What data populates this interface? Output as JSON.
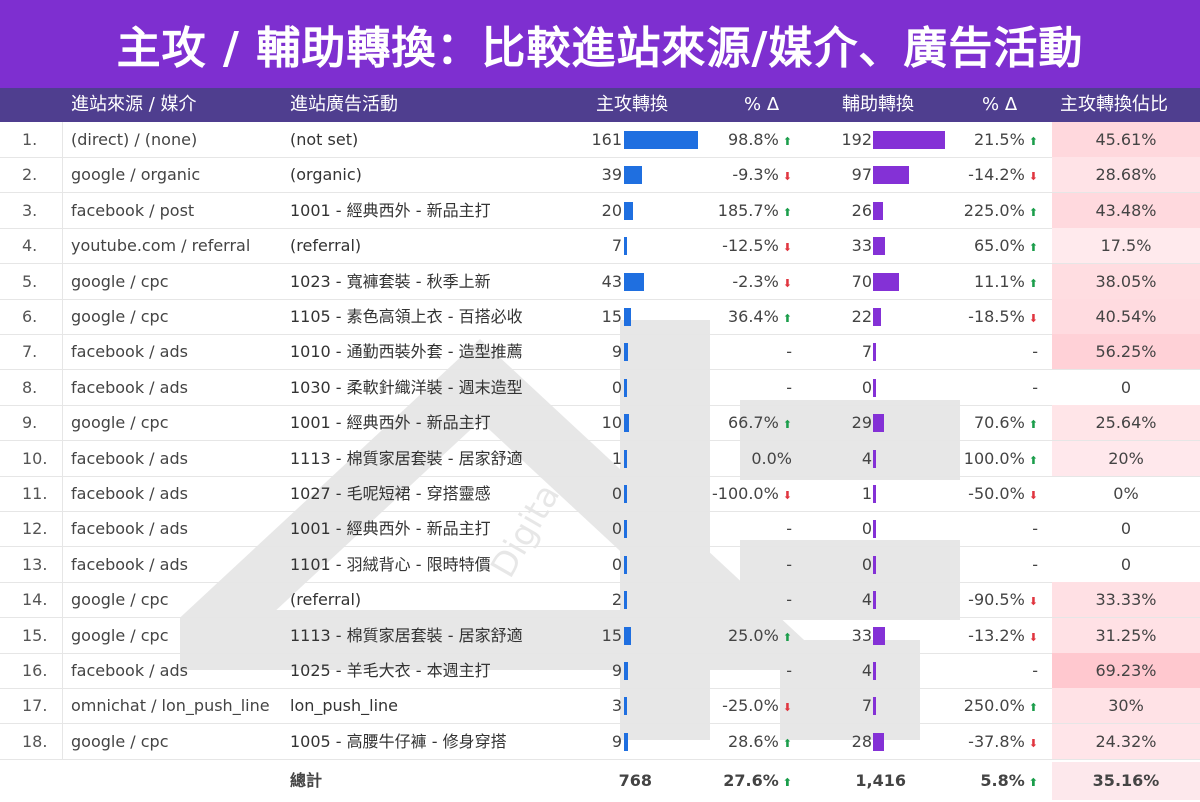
{
  "title": "主攻 / 輔助轉換：比較進站來源/媒介、廣告活動",
  "colors": {
    "title_bg": "#7e2fd0",
    "header_bg": "#4f3e8f",
    "primary_bar": "#1f6fe0",
    "assist_bar": "#8431d6",
    "up": "#1a9d4a",
    "down": "#e0353f",
    "ratio_heat": "#f8c8d2"
  },
  "columns": {
    "source": "進站來源 / 媒介",
    "campaign": "進站廣告活動",
    "primary": "主攻轉換",
    "primary_change": "% Δ",
    "assist": "輔助轉換",
    "assist_change": "% Δ",
    "ratio": "主攻轉換佔比"
  },
  "rows": [
    {
      "idx": "1.",
      "source": "(direct) / (none)",
      "campaign": "(not set)",
      "primary": 161,
      "primary_change": "98.8%",
      "primary_dir": "up",
      "assist": 192,
      "assist_change": "21.5%",
      "assist_dir": "up",
      "ratio": "45.61%",
      "ratio_value": 0.4561
    },
    {
      "idx": "2.",
      "source": "google / organic",
      "campaign": "(organic)",
      "primary": 39,
      "primary_change": "-9.3%",
      "primary_dir": "down",
      "assist": 97,
      "assist_change": "-14.2%",
      "assist_dir": "down",
      "ratio": "28.68%",
      "ratio_value": 0.2868
    },
    {
      "idx": "3.",
      "source": "facebook / post",
      "campaign": "1001 - 經典西外 - 新品主打",
      "primary": 20,
      "primary_change": "185.7%",
      "primary_dir": "up",
      "assist": 26,
      "assist_change": "225.0%",
      "assist_dir": "up",
      "ratio": "43.48%",
      "ratio_value": 0.4348
    },
    {
      "idx": "4.",
      "source": "youtube.com / referral",
      "campaign": "(referral)",
      "primary": 7,
      "primary_change": "-12.5%",
      "primary_dir": "down",
      "assist": 33,
      "assist_change": "65.0%",
      "assist_dir": "up",
      "ratio": "17.5%",
      "ratio_value": 0.175
    },
    {
      "idx": "5.",
      "source": "google / cpc",
      "campaign": "1023 - 寬褲套裝 - 秋季上新",
      "primary": 43,
      "primary_change": "-2.3%",
      "primary_dir": "down",
      "assist": 70,
      "assist_change": "11.1%",
      "assist_dir": "up",
      "ratio": "38.05%",
      "ratio_value": 0.3805
    },
    {
      "idx": "6.",
      "source": "google / cpc",
      "campaign": "1105 - 素色高領上衣 - 百搭必收",
      "primary": 15,
      "primary_change": "36.4%",
      "primary_dir": "up",
      "assist": 22,
      "assist_change": "-18.5%",
      "assist_dir": "down",
      "ratio": "40.54%",
      "ratio_value": 0.4054
    },
    {
      "idx": "7.",
      "source": "facebook / ads",
      "campaign": "1010 - 通勤西裝外套 - 造型推薦",
      "primary": 9,
      "primary_change": "-",
      "primary_dir": "",
      "assist": 7,
      "assist_change": "-",
      "assist_dir": "",
      "ratio": "56.25%",
      "ratio_value": 0.5625
    },
    {
      "idx": "8.",
      "source": "facebook / ads",
      "campaign": "1030 - 柔軟針織洋裝 - 週末造型",
      "primary": 0,
      "primary_change": "-",
      "primary_dir": "",
      "assist": 0,
      "assist_change": "-",
      "assist_dir": "",
      "ratio": "0",
      "ratio_value": 0
    },
    {
      "idx": "9.",
      "source": "google / cpc",
      "campaign": "1001 - 經典西外 - 新品主打",
      "primary": 10,
      "primary_change": "66.7%",
      "primary_dir": "up",
      "assist": 29,
      "assist_change": "70.6%",
      "assist_dir": "up",
      "ratio": "25.64%",
      "ratio_value": 0.2564
    },
    {
      "idx": "10.",
      "source": "facebook / ads",
      "campaign": "1113 - 棉質家居套裝 - 居家舒適",
      "primary": 1,
      "primary_change": "0.0%",
      "primary_dir": "",
      "assist": 4,
      "assist_change": "100.0%",
      "assist_dir": "up",
      "ratio": "20%",
      "ratio_value": 0.2
    },
    {
      "idx": "11.",
      "source": "facebook / ads",
      "campaign": "1027 - 毛呢短裙 - 穿搭靈感",
      "primary": 0,
      "primary_change": "-100.0%",
      "primary_dir": "down",
      "assist": 1,
      "assist_change": "-50.0%",
      "assist_dir": "down",
      "ratio": "0%",
      "ratio_value": 0
    },
    {
      "idx": "12.",
      "source": "facebook / ads",
      "campaign": "1001 - 經典西外 - 新品主打",
      "primary": 0,
      "primary_change": "-",
      "primary_dir": "",
      "assist": 0,
      "assist_change": "-",
      "assist_dir": "",
      "ratio": "0",
      "ratio_value": 0
    },
    {
      "idx": "13.",
      "source": "facebook / ads",
      "campaign": "1101 - 羽絨背心 - 限時特價",
      "primary": 0,
      "primary_change": "-",
      "primary_dir": "",
      "assist": 0,
      "assist_change": "-",
      "assist_dir": "",
      "ratio": "0",
      "ratio_value": 0
    },
    {
      "idx": "14.",
      "source": "google / cpc",
      "campaign": "(referral)",
      "primary": 2,
      "primary_change": "-",
      "primary_dir": "",
      "assist": 4,
      "assist_change": "-90.5%",
      "assist_dir": "down",
      "ratio": "33.33%",
      "ratio_value": 0.3333
    },
    {
      "idx": "15.",
      "source": "google / cpc",
      "campaign": "1113 - 棉質家居套裝 - 居家舒適",
      "primary": 15,
      "primary_change": "25.0%",
      "primary_dir": "up",
      "assist": 33,
      "assist_change": "-13.2%",
      "assist_dir": "down",
      "ratio": "31.25%",
      "ratio_value": 0.3125
    },
    {
      "idx": "16.",
      "source": "facebook / ads",
      "campaign": "1025 - 羊毛大衣 - 本週主打",
      "primary": 9,
      "primary_change": "-",
      "primary_dir": "",
      "assist": 4,
      "assist_change": "-",
      "assist_dir": "",
      "ratio": "69.23%",
      "ratio_value": 0.6923
    },
    {
      "idx": "17.",
      "source": "omnichat / lon_push_line",
      "campaign": "lon_push_line",
      "primary": 3,
      "primary_change": "-25.0%",
      "primary_dir": "down",
      "assist": 7,
      "assist_change": "250.0%",
      "assist_dir": "up",
      "ratio": "30%",
      "ratio_value": 0.3
    },
    {
      "idx": "18.",
      "source": "google / cpc",
      "campaign": "1005 - 高腰牛仔褲 - 修身穿搭",
      "primary": 9,
      "primary_change": "28.6%",
      "primary_dir": "up",
      "assist": 28,
      "assist_change": "-37.8%",
      "assist_dir": "down",
      "ratio": "24.32%",
      "ratio_value": 0.2432
    }
  ],
  "total": {
    "label": "總計",
    "primary": "768",
    "primary_change": "27.6%",
    "primary_dir": "up",
    "assist": "1,416",
    "assist_change": "5.8%",
    "assist_dir": "up",
    "ratio": "35.16%"
  },
  "watermark_text": "Digital"
}
